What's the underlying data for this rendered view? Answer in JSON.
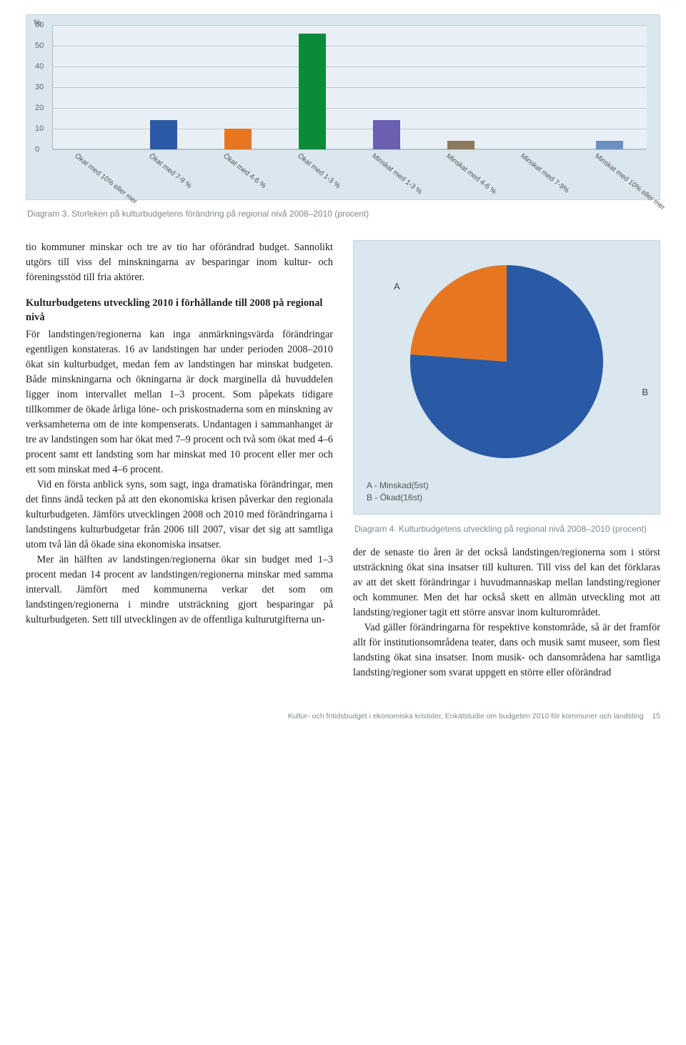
{
  "bar_chart": {
    "type": "bar",
    "y_unit": "%",
    "ylim": [
      0,
      60
    ],
    "ytick_step": 10,
    "yticks": [
      0,
      10,
      20,
      30,
      40,
      50,
      60
    ],
    "grid_color": "#bcc9d1",
    "bg_color": "#dae7ef",
    "plot_bg": "rgba(255,255,255,0.4)",
    "categories": [
      "Ökat med 10% eller mer",
      "Ökat med 7-9 %",
      "Ökat med 4-6 %",
      "Ökat med 1-3 %",
      "Minskat med 1-3 %",
      "Minskat med 4-6 %",
      "Minskat med 7-9%",
      "Minskat med 10% eller mer"
    ],
    "values": [
      0,
      14,
      10,
      56,
      14,
      4,
      0,
      4
    ],
    "bar_colors": [
      "#2a5aa5",
      "#2a5aa5",
      "#e67720",
      "#0b8a3a",
      "#6a5fb0",
      "#8a7a5c",
      "#2a5aa5",
      "#6b8fc3"
    ],
    "bar_width_pct": 4.6,
    "label_fontsize": 10
  },
  "bar_caption": "Diagram 3. Storleken på kulturbudgetens förändring på regional nivå 2008–2010 (procent)",
  "body": {
    "p1": "tio kommuner minskar och tre av tio har oförändrad budget. Sannolikt utgörs till viss del minskningarna av besparingar inom kultur- och föreningsstöd till fria aktörer.",
    "heading": "Kulturbudgetens utveckling 2010 i förhållande till 2008 på regional nivå",
    "p2": "För landstingen/regionerna kan inga anmärkningsvärda förändringar egentligen konstateras. 16 av landstingen har under perioden 2008–2010 ökat sin kulturbudget, medan fem av landstingen har minskat budgeten. Både minskningarna och ökningarna är dock marginella då huvuddelen ligger inom intervallet mellan 1–3 procent. Som påpekats tidigare tillkommer de ökade årliga löne- och priskostnaderna som en minskning av verksamheterna om de inte kompenserats. Undantagen i sammanhanget är tre av landstingen som har ökat med 7–9 procent och två som ökat med 4–6 procent samt ett landsting som har minskat med 10 procent eller mer och ett som minskat med 4–6 procent.",
    "p3": "Vid en första anblick syns, som sagt, inga dramatiska förändringar, men det finns ändå tecken på att den ekonomiska krisen påverkar den regionala kulturbudgeten. Jämförs utvecklingen 2008 och 2010 med förändringarna i landstingens kulturbudgetar från 2006 till 2007, visar det sig att samtliga utom två län då ökade sina ekonomiska insatser.",
    "p4": "Mer än hälften av landstingen/regionerna ökar sin budget med 1–3 procent medan 14 procent av landstingen/regionerna minskar med samma intervall. Jämfört med kommunerna verkar det som om landstingen/regionerna i mindre utsträckning gjort besparingar på kulturbudgeten. Sett till utvecklingen av de offentliga kulturutgifterna un-",
    "p5": "der de senaste tio åren är det också landstingen/regionerna som i störst utsträckning ökat sina insatser till kulturen. Till viss del kan det förklaras av att det skett förändringar i huvudmannaskap mellan landsting/regioner och kommuner. Men det har också skett en allmän utveckling mot att landsting/regioner tagit ett större ansvar inom kulturområdet.",
    "p6": "Vad gäller förändringarna för respektive konstområde, så är det framför allt för institutionsområdena teater, dans och musik samt museer, som flest landsting ökat sina insatser. Inom musik- och dansområdena har samtliga landsting/regioner som svarat uppgett en större eller oförändrad"
  },
  "pie_chart": {
    "type": "pie",
    "labels": [
      "A",
      "B"
    ],
    "label_a": "A",
    "label_b": "B",
    "legend_a": "A - Minskad(5st)",
    "legend_b": "B - Ökad(16st)",
    "values": [
      5,
      16
    ],
    "colors": [
      "#e67720",
      "#2a5aa5"
    ],
    "bg_color": "#dae7ef",
    "radius": 135,
    "a_deg": 85.7
  },
  "pie_caption": "Diagram 4. Kulturbudgetens utveckling på regional nivå 2008–2010 (procent)",
  "footer": {
    "text": "Kultur- och fritidsbudget i ekonomiska kristider, Enkätstudie om budgeten 2010 för kommuner och landsting",
    "page": "15"
  }
}
